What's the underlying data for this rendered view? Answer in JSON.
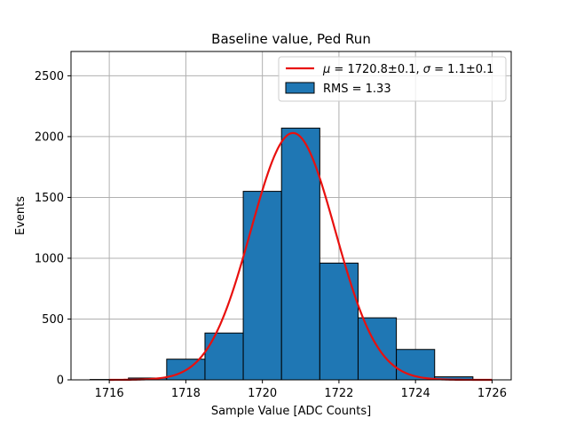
{
  "chart_data": {
    "type": "bar",
    "title": "Baseline value, Ped Run",
    "xlabel": "Sample Value [ADC Counts]",
    "ylabel": "Events",
    "xlim": [
      1715.0,
      1726.5
    ],
    "ylim": [
      0,
      2700
    ],
    "grid": true,
    "legend_position": "top-right",
    "x_ticks": [
      1716,
      1718,
      1720,
      1722,
      1724,
      1726
    ],
    "y_ticks": [
      0,
      500,
      1000,
      1500,
      2000,
      2500
    ],
    "bins": [
      {
        "from": 1715.5,
        "to": 1716.5,
        "count": 3
      },
      {
        "from": 1716.5,
        "to": 1717.5,
        "count": 15
      },
      {
        "from": 1717.5,
        "to": 1718.5,
        "count": 170
      },
      {
        "from": 1718.5,
        "to": 1719.5,
        "count": 385
      },
      {
        "from": 1719.5,
        "to": 1720.5,
        "count": 1550
      },
      {
        "from": 1720.5,
        "to": 1721.5,
        "count": 2070
      },
      {
        "from": 1721.5,
        "to": 1722.5,
        "count": 960
      },
      {
        "from": 1722.5,
        "to": 1723.5,
        "count": 510
      },
      {
        "from": 1723.5,
        "to": 1724.5,
        "count": 250
      },
      {
        "from": 1724.5,
        "to": 1725.5,
        "count": 25
      },
      {
        "from": 1725.5,
        "to": 1726.5,
        "count": 0
      }
    ],
    "fit": {
      "mu": 1720.8,
      "sigma": 1.1,
      "amplitude": 2030,
      "x_range": [
        1716.0,
        1726.0
      ]
    },
    "series": [
      {
        "name": "$\\mu = 1720.8$±0.1, $\\sigma = 1.1$±0.1",
        "type": "line",
        "color": "#e8100e"
      },
      {
        "name": "RMS = 1.33",
        "type": "bar",
        "color": "#1f77b4"
      }
    ]
  },
  "legend": {
    "fit_label_mu": "μ",
    "fit_label_mu_value": " = 1720.8±0.1, ",
    "fit_label_sigma": "σ",
    "fit_label_sigma_value": " = 1.1±0.1",
    "hist_label": "RMS = 1.33"
  },
  "colors": {
    "bar_fill": "#1f77b4",
    "bar_edge": "#000000",
    "fit_line": "#e8100e",
    "grid": "#b0b0b0"
  }
}
